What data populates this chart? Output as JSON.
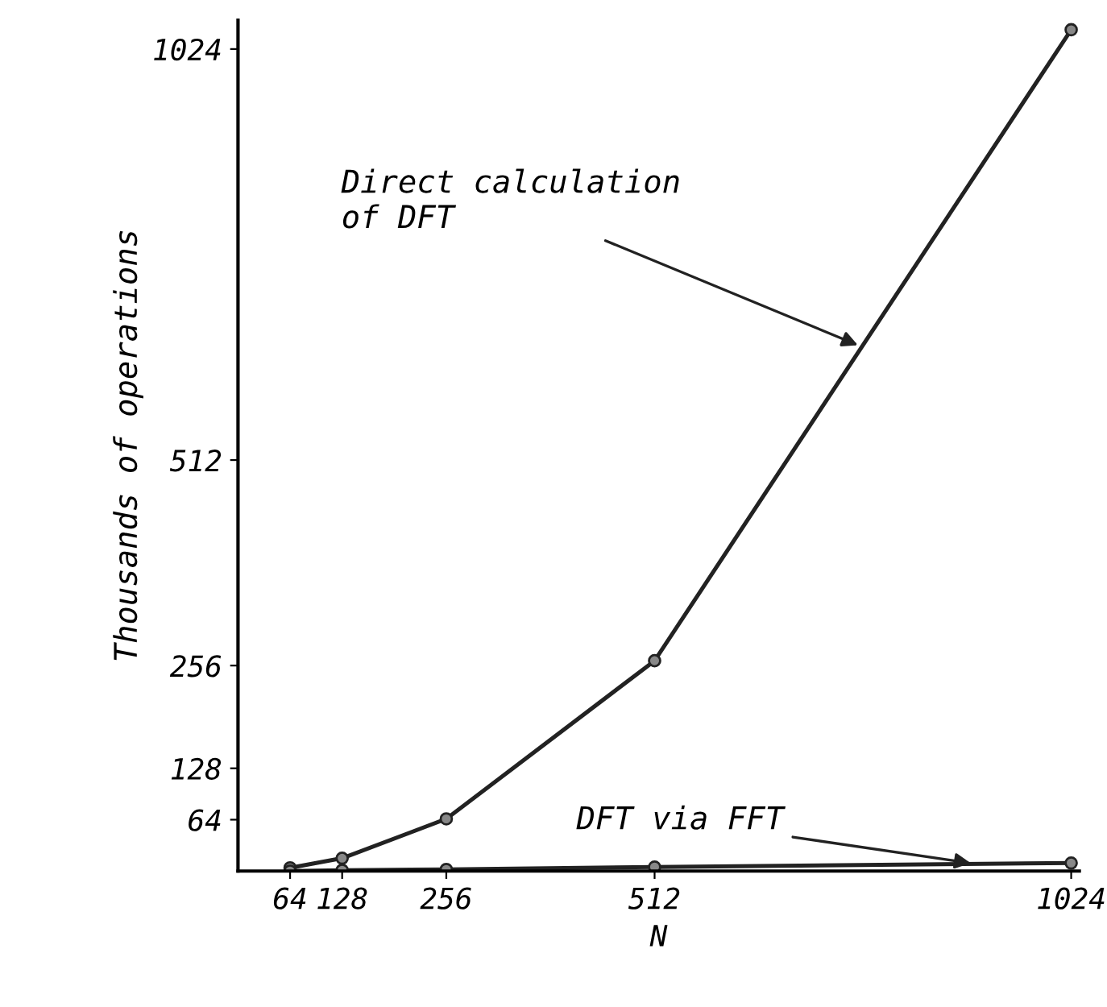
{
  "chart_data": {
    "type": "line",
    "xlabel": "N",
    "ylabel": "Thousands of operations",
    "x": [
      64,
      128,
      256,
      512,
      1024
    ],
    "series": [
      {
        "color": "#222222",
        "values": [
          4,
          16,
          65,
          262,
          1048
        ]
      },
      {
        "color": "#222222",
        "values": [
          0,
          1,
          2,
          5,
          10
        ]
      }
    ],
    "xlim": [
      0,
      1034
    ],
    "xticks": [
      64,
      128,
      256,
      512,
      1024
    ],
    "ylim": [
      0,
      1060
    ],
    "yticks": [
      64,
      128,
      256,
      512,
      1024
    ],
    "marker": "circle",
    "line_style": "solid",
    "grid": false,
    "legend": false,
    "annotations": [
      {
        "text": "Direct calculation\nof DFT",
        "x": 767,
        "y": 653
      },
      {
        "text": "DFT via FFT",
        "x": 906,
        "y": 9
      }
    ]
  }
}
